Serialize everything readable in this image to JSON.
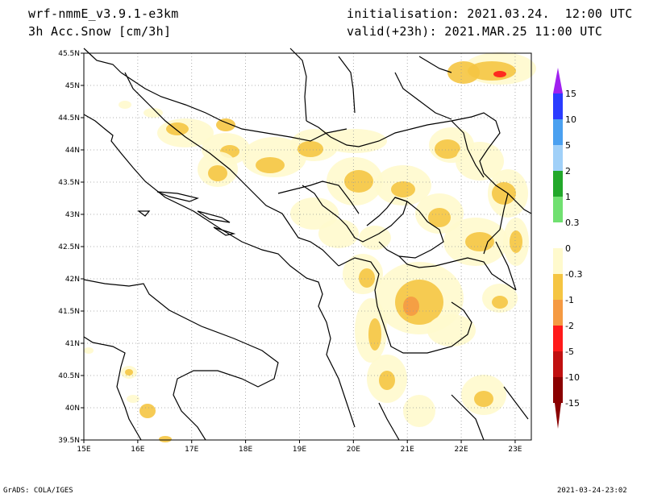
{
  "header": {
    "model": "wrf-nmmE_v3.9.1-e3km",
    "field": "3h Acc.Snow [cm/3h]",
    "init": "initialisation: 2021.03.24.  12:00 UTC",
    "valid": "valid(+23h): 2021.MAR.25 11:00 UTC"
  },
  "axes": {
    "lon_labels": [
      "15E",
      "16E",
      "17E",
      "18E",
      "19E",
      "20E",
      "21E",
      "22E",
      "23E"
    ],
    "lat_labels": [
      "39.5N",
      "40N",
      "40.5N",
      "41N",
      "41.5N",
      "42N",
      "42.5N",
      "43N",
      "43.5N",
      "44N",
      "44.5N",
      "45N",
      "45.5N"
    ],
    "lon_range": [
      15,
      23.3
    ],
    "lat_range": [
      39.5,
      45.5
    ]
  },
  "legend": {
    "labels": [
      "15",
      "10",
      "5",
      "2",
      "1",
      "0.3",
      "0",
      "-0.3",
      "-1",
      "-2",
      "-5",
      "-10",
      "-15"
    ],
    "colors": [
      "#a020f0",
      "#2a3cff",
      "#4aa0f0",
      "#a0d0f8",
      "#22a82a",
      "#70e070",
      "#ffffff",
      "#fffacd",
      "#f5c542",
      "#f59a42",
      "#ff1a1a",
      "#c01010",
      "#8a0000"
    ]
  },
  "footer": {
    "left": "GrADS: COLA/IGES",
    "right": "2021-03-24-23:02"
  }
}
